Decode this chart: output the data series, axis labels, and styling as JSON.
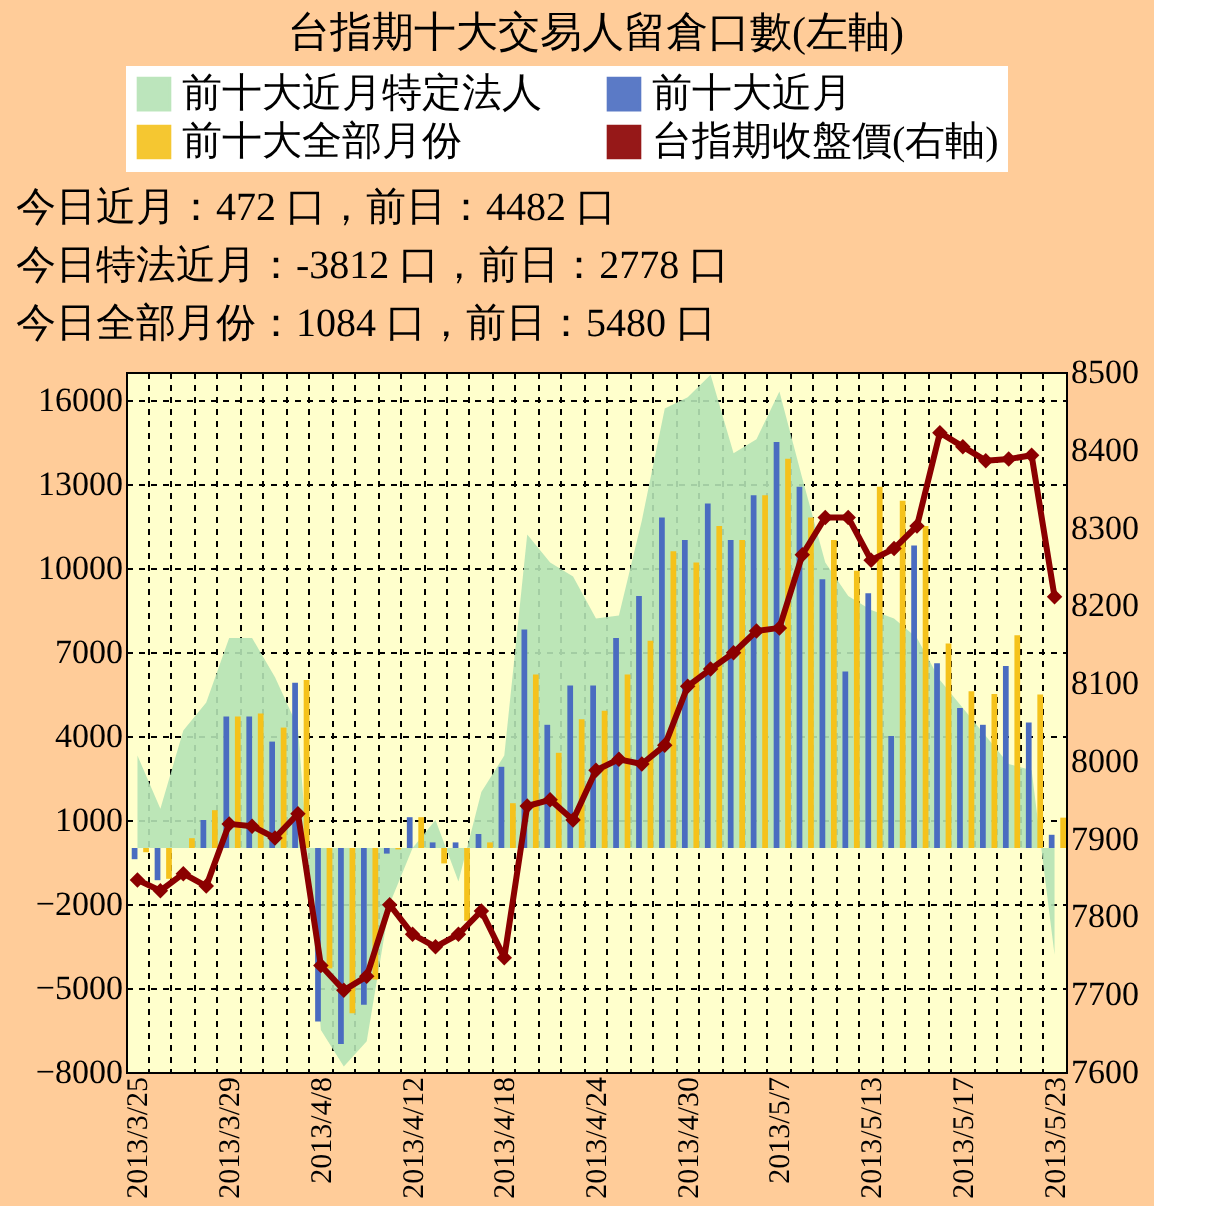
{
  "chart_data": {
    "type": "bar",
    "title": "台指期十大交易人留倉口數(左軸)",
    "annotations": [
      "今日近月：472 口，前日：4482 口",
      "今日特法近月：-3812 口，前日：2778 口",
      "今日全部月份：1084 口，前日：5480 口"
    ],
    "categories": [
      "2013/3/25",
      null,
      null,
      null,
      "2013/3/29",
      null,
      null,
      null,
      "2013/4/8",
      null,
      null,
      null,
      "2013/4/12",
      null,
      null,
      null,
      "2013/4/18",
      null,
      null,
      null,
      "2013/4/24",
      null,
      null,
      null,
      "2013/4/30",
      null,
      null,
      null,
      "2013/5/7",
      null,
      null,
      null,
      "2013/5/13",
      null,
      null,
      null,
      "2013/5/17",
      null,
      null,
      null,
      "2013/5/23"
    ],
    "series": [
      {
        "name": "前十大近月特定法人",
        "type": "area",
        "color": "#b5e3b5",
        "values": [
          3300,
          1400,
          4200,
          5200,
          7500,
          7500,
          6100,
          4300,
          -6500,
          -7800,
          -6900,
          -2000,
          0,
          1000,
          -1200,
          2000,
          3300,
          11200,
          10200,
          9700,
          8200,
          8300,
          11700,
          15700,
          16100,
          16900,
          14100,
          14600,
          16300,
          13200,
          10200,
          9000,
          8500,
          8200,
          7500,
          6000,
          5000,
          4000,
          3000,
          2778,
          -3812
        ]
      },
      {
        "name": "前十大近月",
        "color": "#4a6cc0",
        "values": [
          -400,
          -1150,
          0,
          1000,
          4700,
          4700,
          3800,
          5900,
          -6200,
          -7000,
          -5600,
          -200,
          1100,
          200,
          200,
          500,
          2900,
          7800,
          4400,
          5800,
          5800,
          7500,
          9000,
          11800,
          11000,
          12300,
          11000,
          12600,
          14500,
          12900,
          9600,
          6300,
          9100,
          4000,
          10800,
          6600,
          5000,
          4400,
          6500,
          4482,
          472
        ]
      },
      {
        "name": "前十大全部月份",
        "color": "#f5c21b",
        "values": [
          -150,
          -1100,
          350,
          1350,
          4700,
          4800,
          4300,
          6000,
          -4300,
          -5900,
          -4700,
          -50,
          1100,
          -550,
          -2600,
          200,
          1600,
          6200,
          3400,
          4600,
          4900,
          6200,
          7400,
          10600,
          10200,
          11500,
          11000,
          12600,
          13900,
          11800,
          11000,
          9900,
          12900,
          12400,
          11500,
          7300,
          5600,
          5500,
          7600,
          5480,
          1084
        ]
      },
      {
        "name": "台指期收盤價(右軸)",
        "type": "line",
        "axis": "y2",
        "color": "#8b0000",
        "marker": "diamond",
        "line_style": "solid",
        "values": [
          7847,
          7833,
          7855,
          7839,
          7919,
          7916,
          7901,
          7932,
          7737,
          7705,
          7723,
          7815,
          7777,
          7761,
          7777,
          7807,
          7747,
          7942,
          7950,
          7924,
          7988,
          8002,
          7996,
          8020,
          8096,
          8118,
          8139,
          8167,
          8171,
          8265,
          8313,
          8313,
          8258,
          8273,
          8302,
          8422,
          8404,
          8386,
          8388,
          8393,
          8211
        ]
      }
    ],
    "ylim": [
      -8000,
      17000
    ],
    "yticks": [
      -8000,
      -5000,
      -2000,
      1000,
      4000,
      7000,
      10000,
      13000,
      16000
    ],
    "y2lim": [
      7600,
      8500
    ],
    "y2ticks": [
      7600,
      7700,
      7800,
      7900,
      8000,
      8100,
      8200,
      8300,
      8400,
      8500
    ],
    "grid": true,
    "legend": "top"
  }
}
